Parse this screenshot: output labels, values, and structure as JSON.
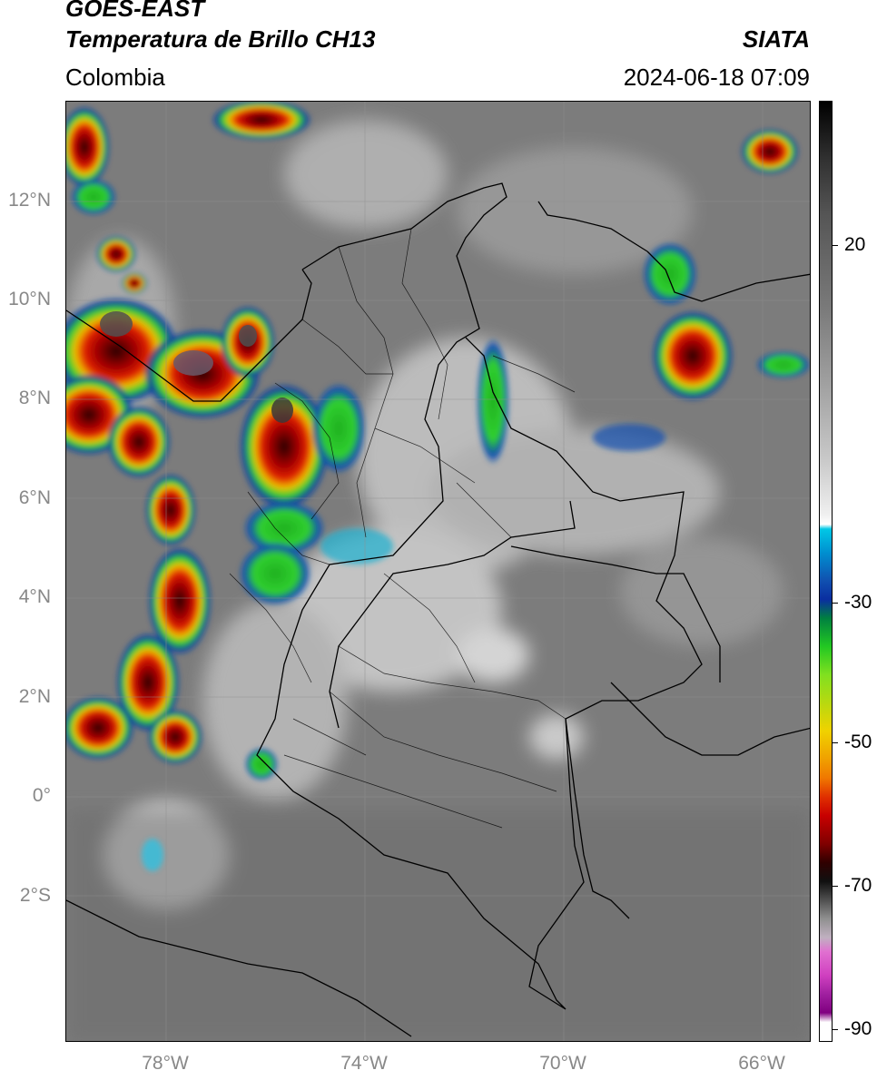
{
  "header": {
    "satellite": "GOES-EAST",
    "product": "Temperatura de Brillo CH13",
    "region": "Colombia",
    "agency": "SIATA",
    "datetime": "2024-06-18 07:09"
  },
  "map": {
    "lon_range": [
      -80,
      -65
    ],
    "lat_range": [
      -5,
      14
    ],
    "lat_labels": [
      {
        "lat": 12,
        "text": "12°N"
      },
      {
        "lat": 10,
        "text": "10°N"
      },
      {
        "lat": 8,
        "text": "8°N"
      },
      {
        "lat": 6,
        "text": "6°N"
      },
      {
        "lat": 4,
        "text": "4°N"
      },
      {
        "lat": 2,
        "text": "2°N"
      },
      {
        "lat": 0,
        "text": "0°"
      },
      {
        "lat": -2,
        "text": "2°S"
      }
    ],
    "lon_labels": [
      {
        "lon": -78,
        "text": "78°W"
      },
      {
        "lon": -74,
        "text": "74°W"
      },
      {
        "lon": -70,
        "text": "70°W"
      },
      {
        "lon": -66,
        "text": "66°W"
      }
    ]
  },
  "colorbar": {
    "range": [
      -92,
      35
    ],
    "ticks": [
      {
        "value": 20,
        "text": "20"
      },
      {
        "value": -30,
        "text": "-30"
      },
      {
        "value": -50,
        "text": "-50"
      },
      {
        "value": -70,
        "text": "-70"
      },
      {
        "value": -90,
        "text": "-90"
      }
    ],
    "colors": {
      "warm_top": "#000000",
      "gray_mid": "#808080",
      "cold_white": "#ffffff",
      "cyan": "#00c8e6",
      "blue": "#0a2ea0",
      "green": "#22c822",
      "yellow": "#f0d200",
      "orange": "#f07800",
      "red": "#c80000",
      "dark_red": "#500000",
      "magenta": "#d040c0",
      "purple": "#800080"
    }
  }
}
